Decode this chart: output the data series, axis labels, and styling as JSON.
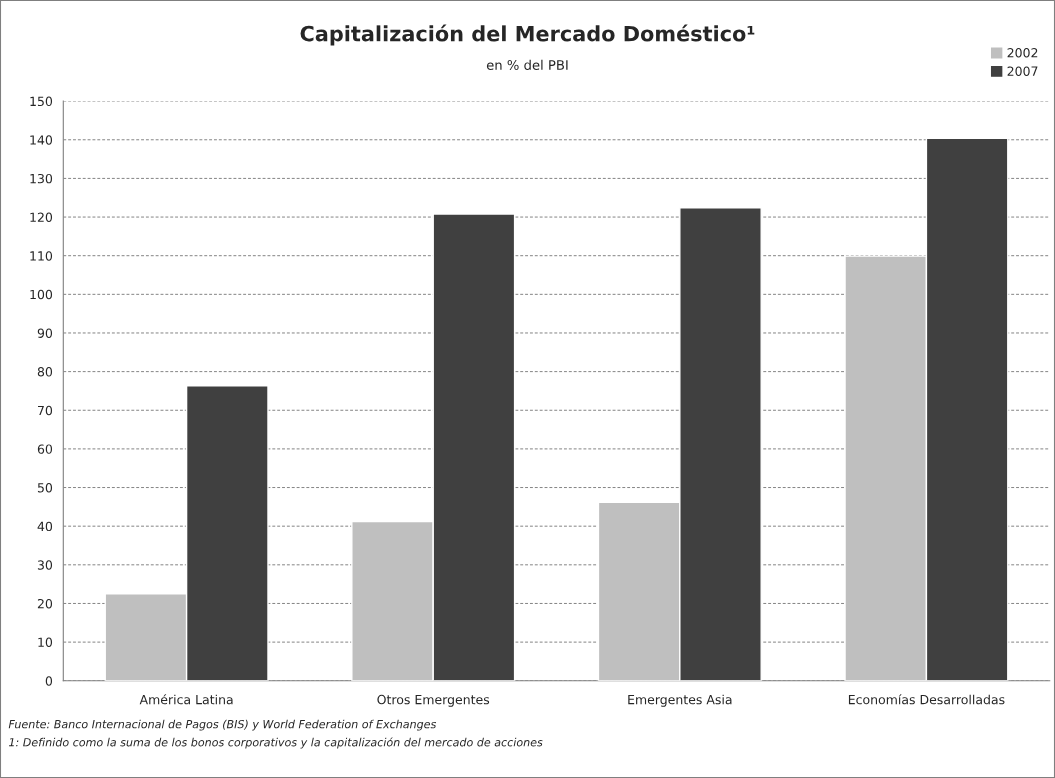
{
  "chart_data": {
    "type": "bar",
    "title": "Capitalización del Mercado Doméstico¹",
    "subtitle": "en % del PBI",
    "categories": [
      "América Latina",
      "Otros Emergentes",
      "Emergentes Asia",
      "Economías Desarrolladas"
    ],
    "series": [
      {
        "name": "2002",
        "color": "#bfbfbf",
        "values": [
          22.5,
          41.2,
          46.2,
          109.9
        ]
      },
      {
        "name": "2007",
        "color": "#404040",
        "values": [
          76.3,
          120.8,
          122.4,
          140.4
        ]
      }
    ],
    "ylim": [
      0,
      150
    ],
    "yticks": [
      0,
      10,
      20,
      30,
      40,
      50,
      60,
      70,
      80,
      90,
      100,
      110,
      120,
      130,
      140,
      150
    ],
    "grid": "y",
    "legend": "top right",
    "annotations": [
      "Fuente: Banco Internacional de Pagos (BIS) y World Federation of Exchanges",
      "1: Definido como la suma de los bonos corporativos y la capitalización del mercado de acciones"
    ]
  }
}
